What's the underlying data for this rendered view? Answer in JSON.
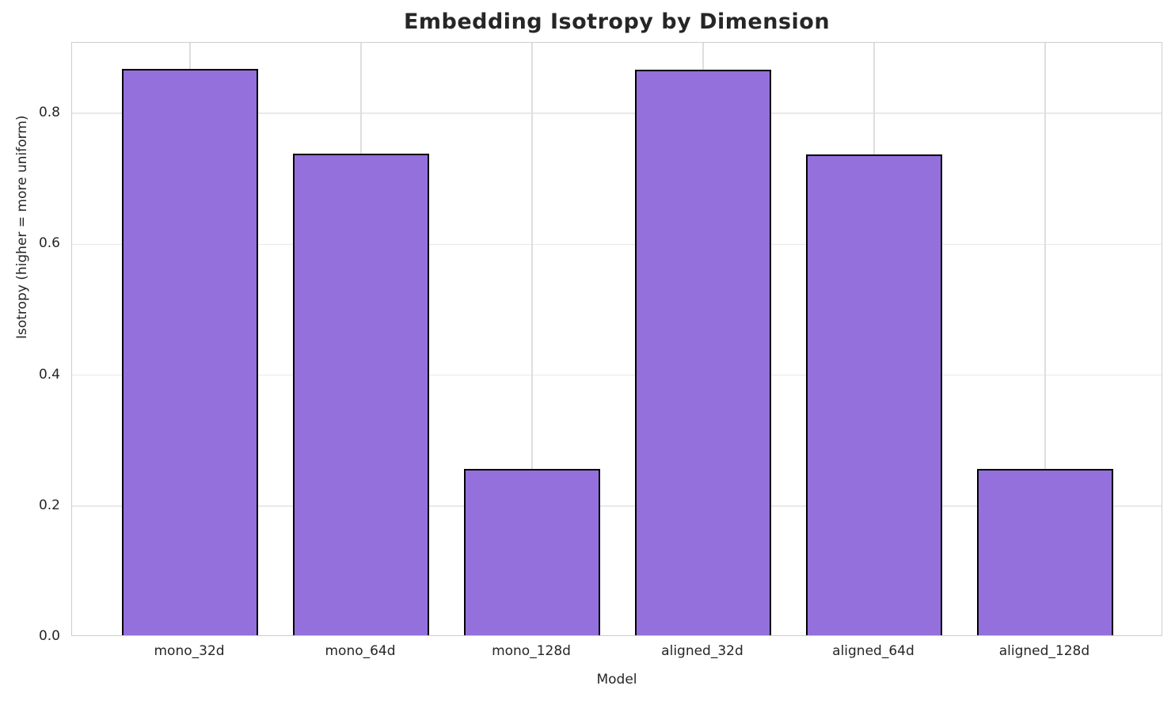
{
  "chart_data": {
    "type": "bar",
    "title": "Embedding Isotropy by Dimension",
    "xlabel": "Model",
    "ylabel": "Isotropy (higher = more uniform)",
    "categories": [
      "mono_32d",
      "mono_64d",
      "mono_128d",
      "aligned_32d",
      "aligned_64d",
      "aligned_128d"
    ],
    "values": [
      0.866,
      0.736,
      0.254,
      0.864,
      0.735,
      0.254
    ],
    "yticks": [
      0.0,
      0.2,
      0.4,
      0.6,
      0.8
    ],
    "ytick_labels": [
      "0.0",
      "0.2",
      "0.4",
      "0.6",
      "0.8"
    ],
    "ylim": [
      0,
      0.908
    ],
    "xlim": [
      -0.69,
      5.69
    ],
    "bar_unit_width": 0.8,
    "grid": true,
    "legend": null,
    "bar_color": "#9370DB",
    "bar_edge_color": "#000000",
    "grid_color": "#e6e6e6",
    "spine_color": "#cdcdcd",
    "text_color": "#262626"
  }
}
